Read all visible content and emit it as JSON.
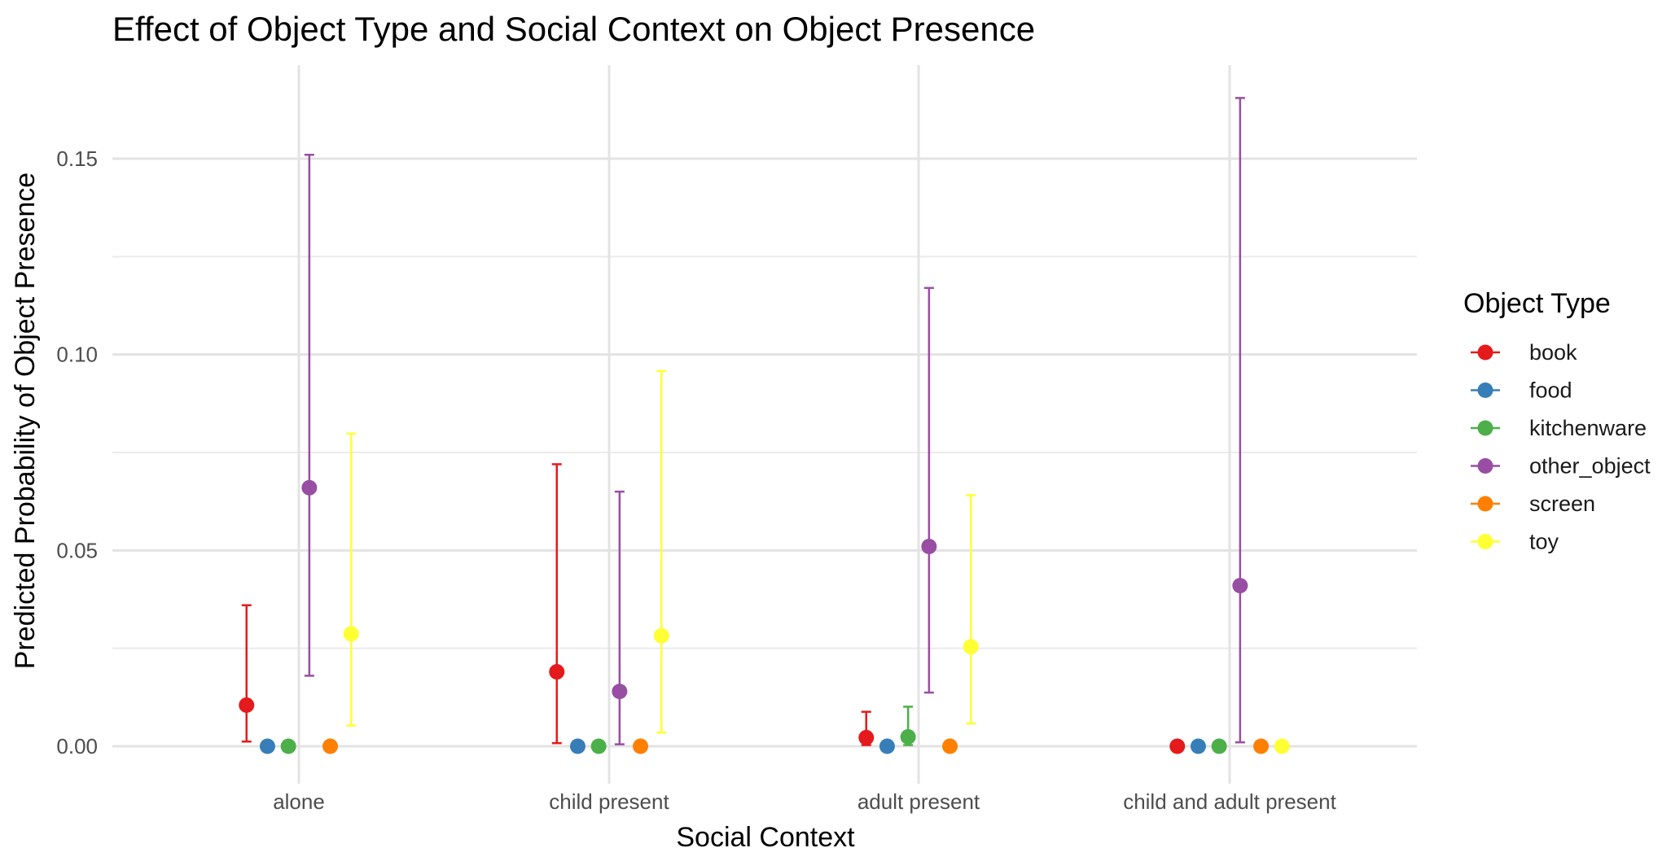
{
  "chart_data": {
    "type": "scatter",
    "title": "Effect of Object Type and Social Context on Object Presence",
    "xlabel": "Social Context",
    "ylabel": "Predicted Probability of Object Presence",
    "categories": [
      "alone",
      "child present",
      "adult present",
      "child and adult present"
    ],
    "ylim": [
      -0.008,
      0.174
    ],
    "yticks": [
      0.0,
      0.05,
      0.1,
      0.15
    ],
    "ytick_labels": [
      "0.00",
      "0.05",
      "0.10",
      "0.15"
    ],
    "grid": true,
    "legend": {
      "title": "Object Type",
      "position": "right"
    },
    "series": [
      {
        "name": "book",
        "color": "#e41a1c",
        "values": [
          0.0105,
          0.019,
          0.0022,
          0.0
        ],
        "lower": [
          0.0012,
          0.0008,
          0.0003,
          null
        ],
        "upper": [
          0.036,
          0.072,
          0.0088,
          null
        ]
      },
      {
        "name": "food",
        "color": "#377eb8",
        "values": [
          0.0,
          0.0,
          0.0,
          0.0
        ],
        "lower": [
          null,
          null,
          null,
          null
        ],
        "upper": [
          null,
          null,
          null,
          null
        ]
      },
      {
        "name": "kitchenware",
        "color": "#4daf4a",
        "values": [
          0.0,
          0.0,
          0.0024,
          0.0
        ],
        "lower": [
          null,
          null,
          0.0003,
          null
        ],
        "upper": [
          null,
          null,
          0.0101,
          null
        ]
      },
      {
        "name": "other_object",
        "color": "#984ea3",
        "values": [
          0.066,
          0.014,
          0.051,
          0.041
        ],
        "lower": [
          0.018,
          0.0005,
          0.0137,
          0.001
        ],
        "upper": [
          0.151,
          0.065,
          0.117,
          0.1655
        ]
      },
      {
        "name": "screen",
        "color": "#ff7f00",
        "values": [
          0.0,
          0.0,
          0.0,
          0.0
        ],
        "lower": [
          null,
          null,
          null,
          null
        ],
        "upper": [
          null,
          null,
          null,
          null
        ]
      },
      {
        "name": "toy",
        "color": "#ffff33",
        "values": [
          0.0287,
          0.0282,
          0.0254,
          0.0
        ],
        "lower": [
          0.0053,
          0.0035,
          0.0058,
          null
        ],
        "upper": [
          0.0798,
          0.0958,
          0.0641,
          null
        ]
      }
    ]
  }
}
